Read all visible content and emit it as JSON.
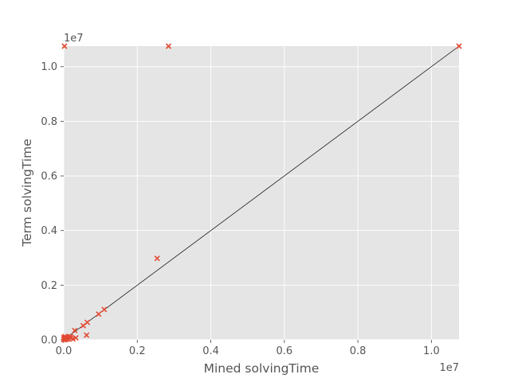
{
  "chart_data": {
    "type": "scatter",
    "title": "",
    "xlabel": "Mined solvingTime",
    "ylabel": "Term solvingTime",
    "x_offset_text": "1e7",
    "y_offset_text": "1e7",
    "xlim": [
      0,
      10750000
    ],
    "ylim": [
      0,
      10750000
    ],
    "x_ticks": [
      {
        "value": 0,
        "label": "0.0"
      },
      {
        "value": 2000000,
        "label": "0.2"
      },
      {
        "value": 4000000,
        "label": "0.4"
      },
      {
        "value": 6000000,
        "label": "0.6"
      },
      {
        "value": 8000000,
        "label": "0.8"
      },
      {
        "value": 10000000,
        "label": "1.0"
      }
    ],
    "y_ticks": [
      {
        "value": 0,
        "label": "0.0"
      },
      {
        "value": 2000000,
        "label": "0.2"
      },
      {
        "value": 4000000,
        "label": "0.4"
      },
      {
        "value": 6000000,
        "label": "0.6"
      },
      {
        "value": 8000000,
        "label": "0.8"
      },
      {
        "value": 10000000,
        "label": "1.0"
      }
    ],
    "grid": true,
    "background": "#e5e5e5",
    "grid_color": "#ffffff",
    "marker_color": "#e24a33",
    "reference_line_color": "#000000",
    "reference_line": {
      "from": [
        0,
        0
      ],
      "to": [
        10750000,
        10750000
      ]
    },
    "series": [
      {
        "marker": "x",
        "points": [
          [
            20000,
            10750000
          ],
          [
            2850000,
            10750000
          ],
          [
            10750000,
            10750000
          ],
          [
            2540000,
            2980000
          ],
          [
            1100000,
            1110000
          ],
          [
            950000,
            940000
          ],
          [
            640000,
            640000
          ],
          [
            530000,
            520000
          ],
          [
            620000,
            170000
          ],
          [
            300000,
            340000
          ],
          [
            330000,
            70000
          ],
          [
            250000,
            30000
          ],
          [
            180000,
            110000
          ],
          [
            130000,
            120000
          ],
          [
            100000,
            60000
          ],
          [
            70000,
            80000
          ],
          [
            50000,
            40000
          ],
          [
            40000,
            120000
          ],
          [
            30000,
            20000
          ],
          [
            20000,
            10000
          ],
          [
            15000,
            60000
          ],
          [
            10000,
            30000
          ],
          [
            5000,
            5000
          ],
          [
            8000,
            90000
          ],
          [
            60000,
            10000
          ],
          [
            120000,
            20000
          ],
          [
            200000,
            60000
          ]
        ]
      }
    ]
  }
}
